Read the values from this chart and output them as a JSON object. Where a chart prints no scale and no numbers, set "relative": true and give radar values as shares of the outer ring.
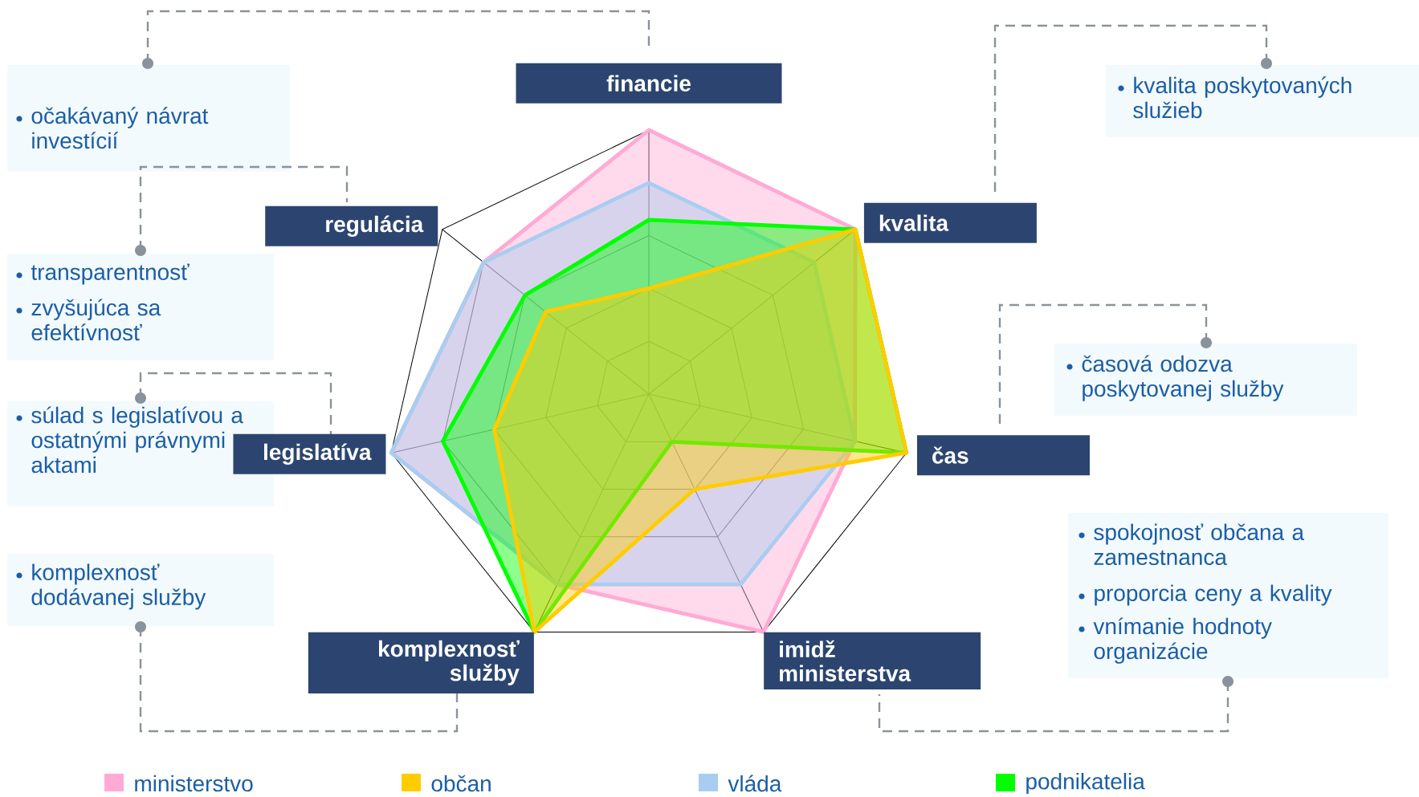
{
  "chart_data": {
    "type": "radar",
    "relative": true,
    "grid": true,
    "legend": "bottom",
    "categories": [
      "financie",
      "kvalita",
      "čas",
      "imidž ministerstva",
      "komplexnosť služby",
      "legislatíva",
      "regulácia"
    ],
    "series": [
      {
        "name": "ministerstvo",
        "color": "#ffaad4",
        "values": [
          1,
          1,
          0.8,
          1,
          0.8,
          1,
          0.8
        ]
      },
      {
        "name": "občan",
        "color": "#ffcc00",
        "values": [
          0.4,
          1,
          1,
          0.4,
          1,
          0.6,
          0.5
        ]
      },
      {
        "name": "vláda",
        "color": "#a9cdf0",
        "values": [
          0.8,
          0.8,
          0.8,
          0.8,
          0.8,
          1,
          0.8
        ]
      },
      {
        "name": "podnikatelia",
        "color": "#00ff00",
        "values": [
          0.66,
          1,
          1,
          0.2,
          1,
          0.8,
          0.6
        ]
      }
    ],
    "annotations": [
      "očakávaný návrat investícií",
      "transparentnosť",
      "zvyšujúca sa efektívnosť",
      "súlad s legislatívou a ostatnými právnymi aktami",
      "komplexnosť dodávanej služby",
      "kvalita poskytovaných služieb",
      "časová odozva poskytovanej služby",
      "spokojnosť občana a zamestnanca",
      "proporcia ceny a kvality",
      "vnímanie hodnoty organizácie"
    ]
  }
}
